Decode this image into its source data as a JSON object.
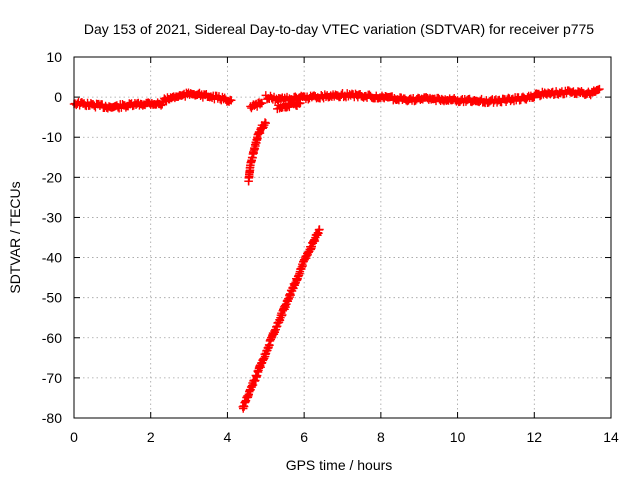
{
  "chart_data": {
    "type": "scatter",
    "title": "Day 153 of 2021, Sidereal Day-to-day VTEC variation (SDTVAR) for receiver p775",
    "xlabel": "GPS time / hours",
    "ylabel": "SDTVAR / TECUs",
    "xlim": [
      0,
      14
    ],
    "ylim": [
      -80,
      10
    ],
    "xticks": [
      0,
      2,
      4,
      6,
      8,
      10,
      12,
      14
    ],
    "yticks": [
      10,
      0,
      -10,
      -20,
      -30,
      -40,
      -50,
      -60,
      -70,
      -80
    ],
    "grid": true,
    "marker": "plus",
    "color": "#ff0000",
    "segments": [
      {
        "x": [
          0.0,
          0.5,
          1.0,
          1.5,
          2.0,
          2.3
        ],
        "y": [
          -1.5,
          -2.0,
          -2.5,
          -2.0,
          -1.5,
          -1.8
        ]
      },
      {
        "x": [
          2.3,
          2.6,
          2.9,
          3.1,
          3.3,
          3.6,
          3.9,
          4.1
        ],
        "y": [
          -1.0,
          0.0,
          0.5,
          1.0,
          0.5,
          0.0,
          -0.5,
          -0.8
        ]
      },
      {
        "x": [
          4.55,
          4.6,
          4.7,
          4.8,
          4.9,
          5.0
        ],
        "y": [
          -21.0,
          -17.0,
          -13.0,
          -9.5,
          -7.5,
          -6.5
        ]
      },
      {
        "x": [
          4.6,
          4.75,
          4.9
        ],
        "y": [
          -2.5,
          -2.0,
          -1.5
        ]
      },
      {
        "x": [
          4.4,
          4.8,
          5.2,
          5.6,
          6.0,
          6.4
        ],
        "y": [
          -77.5,
          -68.5,
          -59.0,
          -50.0,
          -41.0,
          -33.0
        ]
      },
      {
        "x": [
          5.0,
          5.4,
          5.8,
          6.2,
          6.6,
          7.0,
          7.4
        ],
        "y": [
          0.0,
          -0.5,
          -0.3,
          0.0,
          0.3,
          0.5,
          0.4
        ]
      },
      {
        "x": [
          5.3,
          5.5,
          5.7,
          5.9
        ],
        "y": [
          -2.5,
          -2.2,
          -2.0,
          -1.5
        ]
      },
      {
        "x": [
          7.4,
          8.0,
          8.5,
          9.0,
          9.5,
          10.0,
          10.5,
          11.0,
          11.5,
          12.0
        ],
        "y": [
          0.3,
          0.0,
          -0.5,
          -0.5,
          -0.5,
          -0.8,
          -1.0,
          -1.0,
          -0.5,
          0.0
        ]
      },
      {
        "x": [
          12.0,
          12.3,
          12.6,
          12.9,
          13.2,
          13.5,
          13.7
        ],
        "y": [
          0.5,
          1.0,
          1.0,
          1.2,
          1.0,
          1.0,
          2.0
        ]
      }
    ]
  }
}
